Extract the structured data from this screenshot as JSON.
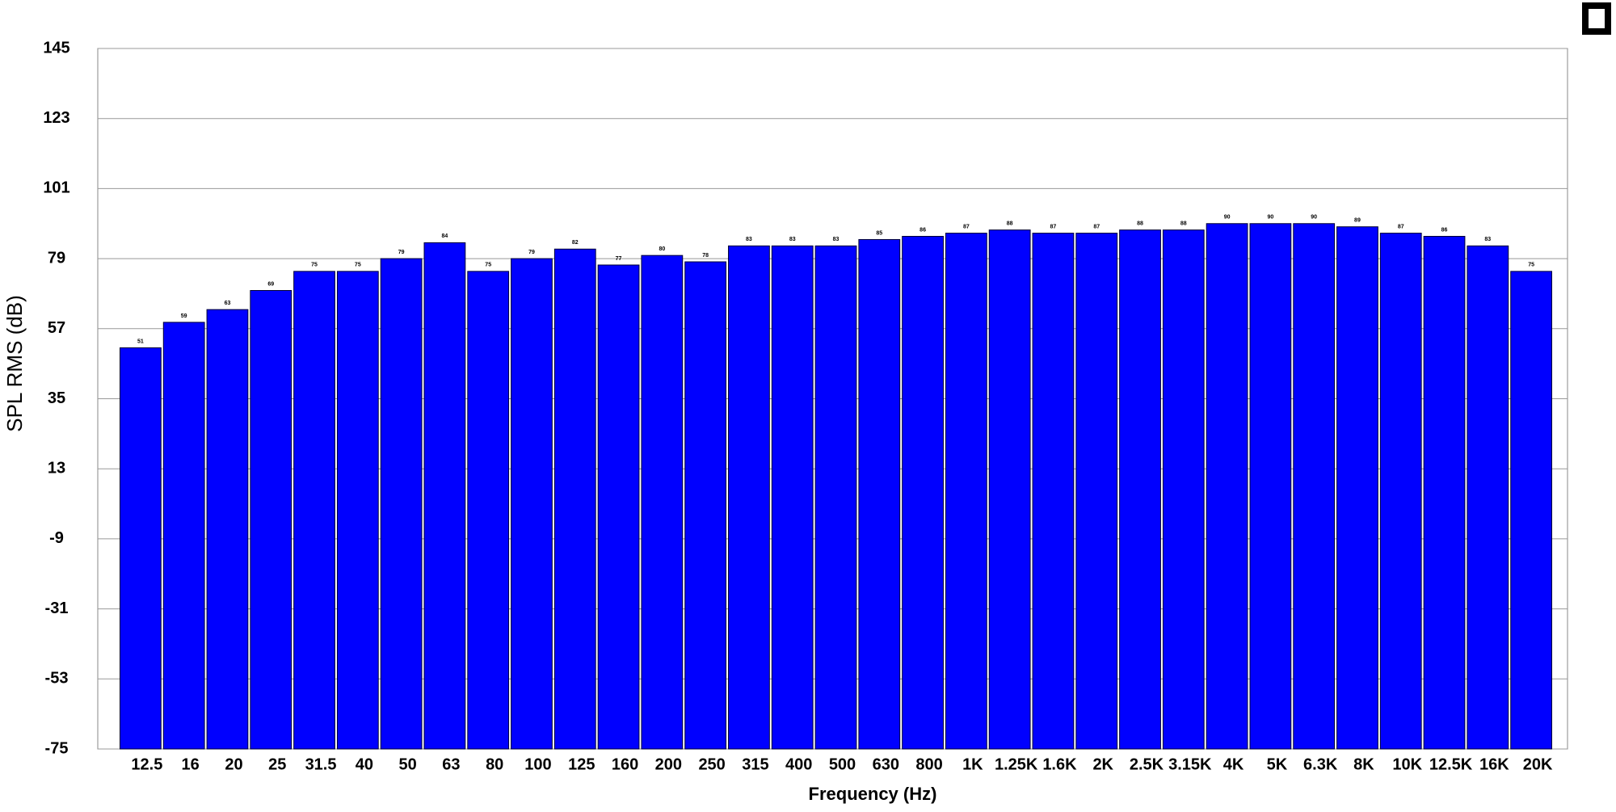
{
  "chart_data": {
    "type": "bar",
    "x_label": "Frequency (Hz)",
    "y_label": "SPL RMS (dB)",
    "categories": [
      "12.5",
      "16",
      "20",
      "25",
      "31.5",
      "40",
      "50",
      "63",
      "80",
      "100",
      "125",
      "160",
      "200",
      "250",
      "315",
      "400",
      "500",
      "630",
      "800",
      "1K",
      "1.25K",
      "1.6K",
      "2K",
      "2.5K",
      "3.15K",
      "4K",
      "5K",
      "6.3K",
      "8K",
      "10K",
      "12.5K",
      "16K",
      "20K"
    ],
    "values": [
      51,
      59,
      63,
      69,
      75,
      75,
      79,
      84,
      75,
      79,
      82,
      77,
      80,
      78,
      83,
      83,
      83,
      85,
      86,
      87,
      88,
      87,
      87,
      88,
      88,
      90,
      90,
      90,
      89,
      87,
      86,
      83,
      75
    ],
    "color": "#0000ff",
    "ylim": [
      -75,
      145
    ],
    "yticks": [
      -75,
      -53,
      -31,
      -9,
      13,
      35,
      57,
      79,
      101,
      123,
      145
    ],
    "grid": true
  }
}
